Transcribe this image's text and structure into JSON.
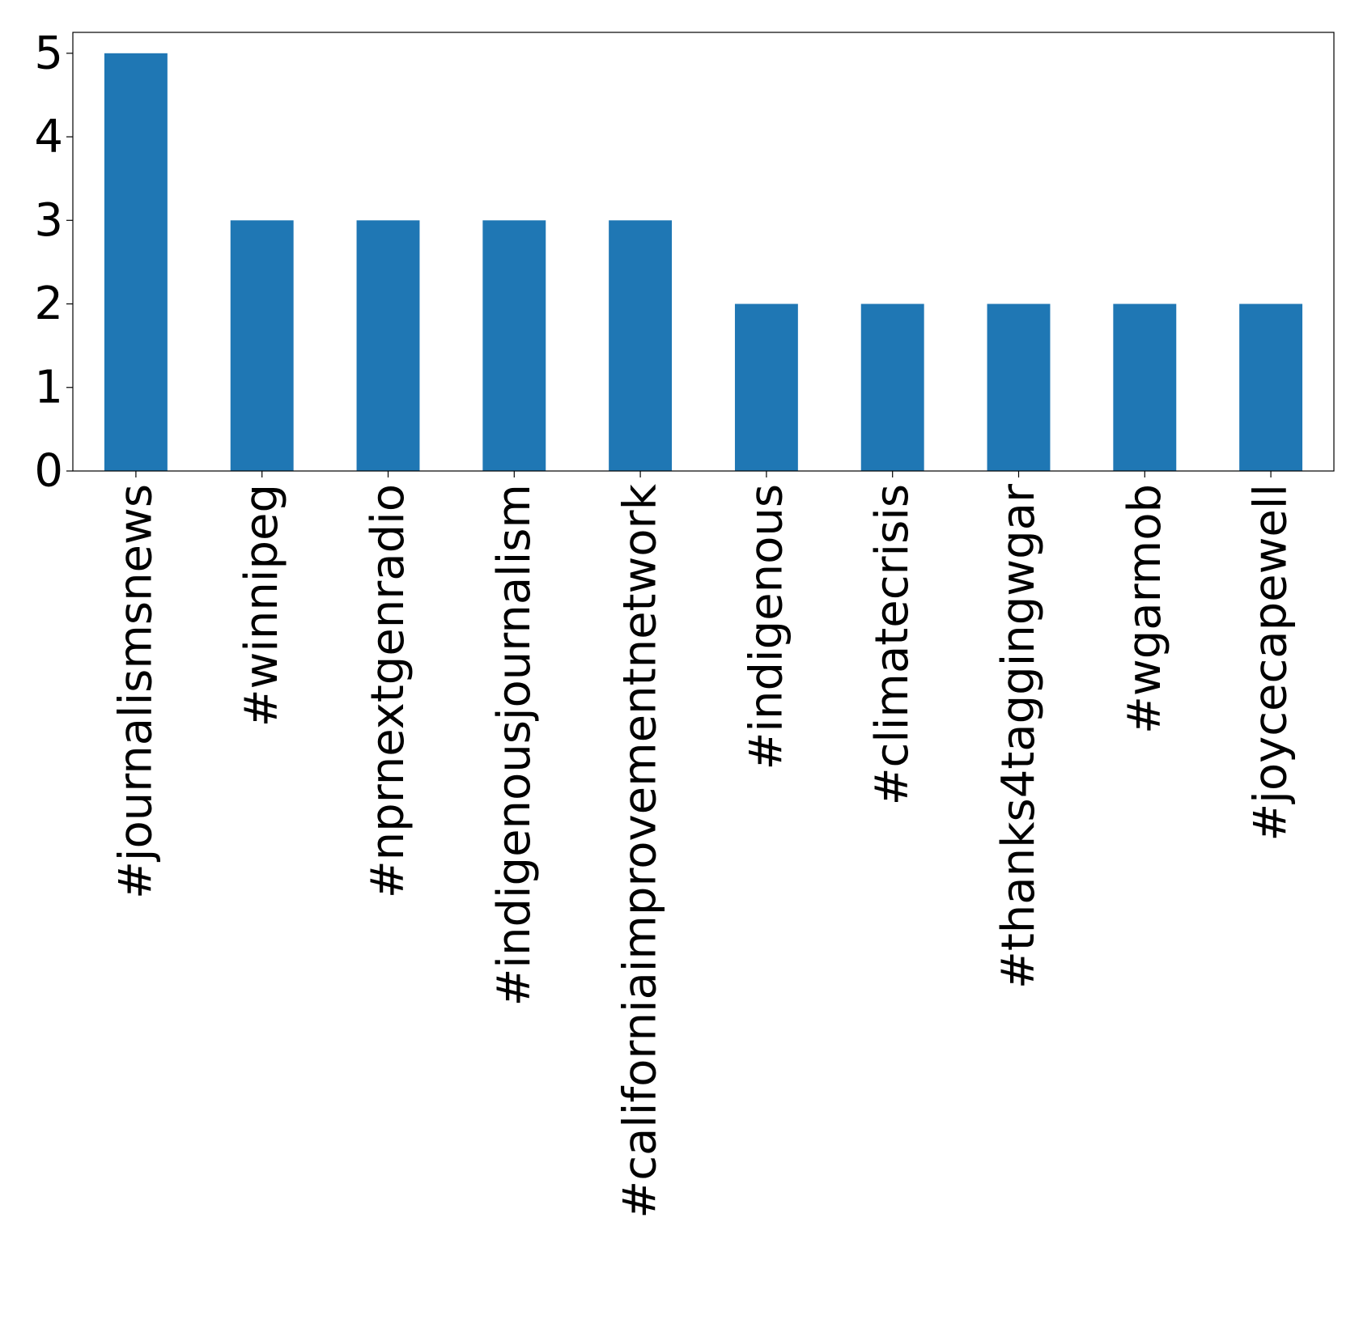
{
  "chart_data": {
    "type": "bar",
    "title": "",
    "xlabel": "",
    "ylabel": "",
    "categories": [
      "#journalismsnews",
      "#winnipeg",
      "#nprnextgenradio",
      "#indigenousjournalism",
      "#californiaimprovementnetwork",
      "#indigenous",
      "#climatecrisis",
      "#thanks4taggingwgar",
      "#wgarmob",
      "#joycecapewell"
    ],
    "values": [
      5,
      3,
      3,
      3,
      3,
      2,
      2,
      2,
      2,
      2
    ],
    "ylim": [
      0,
      5.25
    ],
    "yticks": [
      0,
      1,
      2,
      3,
      4,
      5
    ],
    "grid": false,
    "legend": "none",
    "bar_color": "#1f77b4"
  }
}
